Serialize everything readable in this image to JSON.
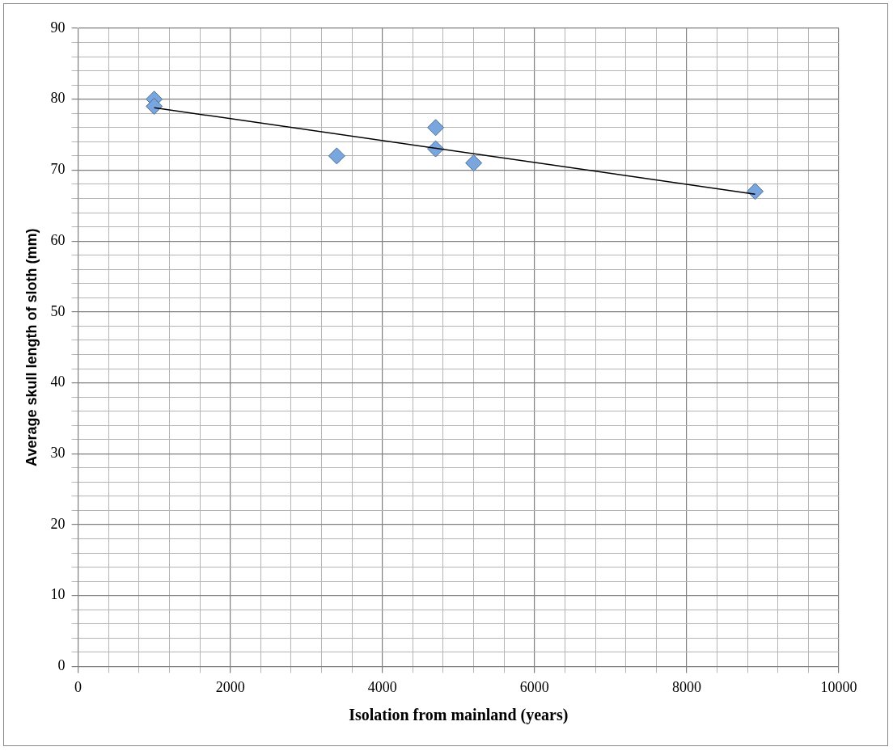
{
  "chart_data": {
    "type": "scatter",
    "xlabel": "Isolation from mainland (years)",
    "ylabel": "Average skull length of sloth (mm)",
    "series": [
      {
        "type": "scatter",
        "color": "#7aa6e0",
        "x": [
          1000,
          1000,
          3400,
          4700,
          4700,
          5200,
          8900
        ],
        "values": [
          80,
          79,
          72,
          76,
          73,
          71,
          67
        ],
        "marker": "diamond"
      },
      {
        "type": "line",
        "color": "#000000",
        "x": [
          1000,
          8900
        ],
        "values": [
          78.8,
          66.6
        ],
        "marker": "none",
        "line_style": "solid"
      }
    ],
    "xlim": [
      0,
      10000
    ],
    "ylim": [
      0,
      90
    ],
    "xticks": [
      0,
      {
        "value": 400,
        "label": null
      },
      {
        "value": 800,
        "label": null
      },
      {
        "value": 1200,
        "label": null
      },
      {
        "value": 1600,
        "label": null
      },
      2000,
      {
        "value": 2400,
        "label": null
      },
      {
        "value": 2800,
        "label": null
      },
      {
        "value": 3200,
        "label": null
      },
      {
        "value": 3600,
        "label": null
      },
      4000,
      {
        "value": 4400,
        "label": null
      },
      {
        "value": 4800,
        "label": null
      },
      {
        "value": 5200,
        "label": null
      },
      {
        "value": 5600,
        "label": null
      },
      6000,
      {
        "value": 6400,
        "label": null
      },
      {
        "value": 6800,
        "label": null
      },
      {
        "value": 7200,
        "label": null
      },
      {
        "value": 7600,
        "label": null
      },
      8000,
      {
        "value": 8400,
        "label": null
      },
      {
        "value": 8800,
        "label": null
      },
      {
        "value": 9200,
        "label": null
      },
      {
        "value": 9600,
        "label": null
      },
      10000
    ],
    "yticks": [
      0,
      {
        "value": 2,
        "label": null
      },
      {
        "value": 4,
        "label": null
      },
      {
        "value": 6,
        "label": null
      },
      {
        "value": 8,
        "label": null
      },
      10,
      {
        "value": 12,
        "label": null
      },
      {
        "value": 14,
        "label": null
      },
      {
        "value": 16,
        "label": null
      },
      {
        "value": 18,
        "label": null
      },
      20,
      {
        "value": 22,
        "label": null
      },
      {
        "value": 24,
        "label": null
      },
      {
        "value": 26,
        "label": null
      },
      {
        "value": 28,
        "label": null
      },
      30,
      {
        "value": 32,
        "label": null
      },
      {
        "value": 34,
        "label": null
      },
      {
        "value": 36,
        "label": null
      },
      {
        "value": 38,
        "label": null
      },
      40,
      {
        "value": 42,
        "label": null
      },
      {
        "value": 44,
        "label": null
      },
      {
        "value": 46,
        "label": null
      },
      {
        "value": 48,
        "label": null
      },
      50,
      {
        "value": 52,
        "label": null
      },
      {
        "value": 54,
        "label": null
      },
      {
        "value": 56,
        "label": null
      },
      {
        "value": 58,
        "label": null
      },
      60,
      {
        "value": 62,
        "label": null
      },
      {
        "value": 64,
        "label": null
      },
      {
        "value": 66,
        "label": null
      },
      {
        "value": 68,
        "label": null
      },
      70,
      {
        "value": 72,
        "label": null
      },
      {
        "value": 74,
        "label": null
      },
      {
        "value": 76,
        "label": null
      },
      {
        "value": 78,
        "label": null
      },
      80,
      {
        "value": 82,
        "label": null
      },
      {
        "value": 84,
        "label": null
      },
      {
        "value": 86,
        "label": null
      },
      {
        "value": 88,
        "label": null
      },
      90
    ],
    "grid": true,
    "legend": false
  }
}
